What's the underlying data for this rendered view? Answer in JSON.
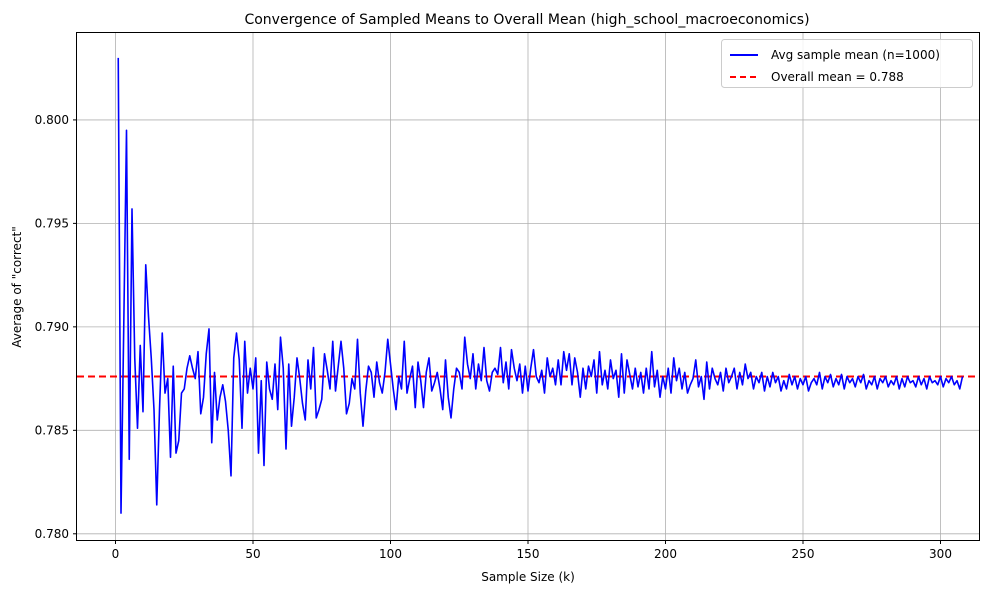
{
  "chart_data": {
    "type": "line",
    "title": "Convergence of Sampled Means to Overall Mean (high_school_macroeconomics)",
    "xlabel": "Sample Size (k)",
    "ylabel": "Average of \"correct\"",
    "xlim": [
      -14,
      314
    ],
    "ylim": [
      0.7797,
      0.8042
    ],
    "xticks": [
      0,
      50,
      100,
      150,
      200,
      250,
      300
    ],
    "yticks": [
      0.78,
      0.785,
      0.79,
      0.795,
      0.8
    ],
    "ytick_labels": [
      "0.780",
      "0.785",
      "0.790",
      "0.795",
      "0.800"
    ],
    "grid": true,
    "legend_position": "top-right",
    "legend": {
      "series_label": "Avg sample mean (n=1000)",
      "mean_label": "Overall mean = 0.788"
    },
    "overall_mean": 0.7876,
    "colors": {
      "series": "#0000ff",
      "mean_line": "#ff0000",
      "grid": "#b0b0b0"
    },
    "series": [
      {
        "name": "Avg sample mean (n=1000)",
        "x_start": 1,
        "x_step": 1,
        "values": [
          0.803,
          0.781,
          0.79,
          0.7995,
          0.7836,
          0.7957,
          0.7885,
          0.7851,
          0.7891,
          0.7859,
          0.793,
          0.7905,
          0.7885,
          0.786,
          0.7814,
          0.786,
          0.7897,
          0.7868,
          0.7875,
          0.7837,
          0.7881,
          0.7839,
          0.7845,
          0.7868,
          0.787,
          0.788,
          0.7886,
          0.788,
          0.7875,
          0.7888,
          0.7858,
          0.7866,
          0.7887,
          0.7899,
          0.7844,
          0.7878,
          0.7855,
          0.7866,
          0.7872,
          0.7864,
          0.785,
          0.7828,
          0.7885,
          0.7897,
          0.7884,
          0.7851,
          0.7893,
          0.7868,
          0.788,
          0.787,
          0.7885,
          0.7839,
          0.7874,
          0.7833,
          0.7883,
          0.787,
          0.7865,
          0.7882,
          0.786,
          0.7895,
          0.788,
          0.7841,
          0.7882,
          0.7852,
          0.7866,
          0.7885,
          0.7875,
          0.7863,
          0.7855,
          0.7884,
          0.787,
          0.789,
          0.7856,
          0.786,
          0.7865,
          0.7887,
          0.7879,
          0.787,
          0.7893,
          0.7869,
          0.7881,
          0.7893,
          0.788,
          0.7858,
          0.7863,
          0.7875,
          0.787,
          0.7894,
          0.7868,
          0.7852,
          0.7869,
          0.7881,
          0.7878,
          0.7866,
          0.7883,
          0.7873,
          0.7868,
          0.7878,
          0.7894,
          0.7882,
          0.787,
          0.786,
          0.7876,
          0.787,
          0.7893,
          0.7868,
          0.7875,
          0.7881,
          0.7861,
          0.7883,
          0.7874,
          0.7861,
          0.7878,
          0.7885,
          0.7869,
          0.7873,
          0.7878,
          0.787,
          0.786,
          0.7884,
          0.7866,
          0.7856,
          0.787,
          0.788,
          0.7878,
          0.787,
          0.7895,
          0.7882,
          0.7875,
          0.7887,
          0.787,
          0.7882,
          0.7874,
          0.789,
          0.7874,
          0.7869,
          0.7878,
          0.788,
          0.7877,
          0.789,
          0.7873,
          0.7883,
          0.787,
          0.7889,
          0.788,
          0.7874,
          0.7882,
          0.7868,
          0.7881,
          0.7869,
          0.788,
          0.7889,
          0.7876,
          0.7873,
          0.7879,
          0.7868,
          0.7885,
          0.7876,
          0.788,
          0.7872,
          0.7884,
          0.7872,
          0.7888,
          0.7879,
          0.7887,
          0.7872,
          0.7885,
          0.7878,
          0.7866,
          0.788,
          0.787,
          0.7881,
          0.7876,
          0.7884,
          0.7868,
          0.7888,
          0.7872,
          0.7879,
          0.787,
          0.7884,
          0.7875,
          0.7879,
          0.7866,
          0.7887,
          0.7868,
          0.7884,
          0.7877,
          0.787,
          0.788,
          0.7871,
          0.7878,
          0.7868,
          0.788,
          0.787,
          0.7888,
          0.7871,
          0.7879,
          0.7866,
          0.7876,
          0.787,
          0.788,
          0.7868,
          0.7885,
          0.7874,
          0.788,
          0.787,
          0.7878,
          0.7868,
          0.7872,
          0.7875,
          0.7884,
          0.7871,
          0.7876,
          0.7865,
          0.7883,
          0.787,
          0.788,
          0.7875,
          0.7872,
          0.7878,
          0.7869,
          0.788,
          0.7873,
          0.7876,
          0.788,
          0.787,
          0.7878,
          0.7872,
          0.7882,
          0.7875,
          0.7878,
          0.787,
          0.7876,
          0.7873,
          0.7878,
          0.7869,
          0.7876,
          0.7871,
          0.7878,
          0.7873,
          0.7876,
          0.7869,
          0.7874,
          0.787,
          0.7877,
          0.7872,
          0.7876,
          0.787,
          0.7875,
          0.7872,
          0.7876,
          0.7869,
          0.7873,
          0.7875,
          0.7872,
          0.7878,
          0.787,
          0.7876,
          0.7873,
          0.7877,
          0.7871,
          0.7875,
          0.7872,
          0.7877,
          0.787,
          0.7876,
          0.7873,
          0.7875,
          0.7871,
          0.7876,
          0.7873,
          0.7877,
          0.787,
          0.7874,
          0.7872,
          0.7876,
          0.787,
          0.7875,
          0.7873,
          0.7876,
          0.7871,
          0.7874,
          0.7872,
          0.7876,
          0.787,
          0.7875,
          0.7871,
          0.7876,
          0.7873,
          0.7874,
          0.7871,
          0.7876,
          0.7872,
          0.7875,
          0.787,
          0.7876,
          0.7873,
          0.7874,
          0.7872,
          0.7876,
          0.7871,
          0.7875,
          0.7873,
          0.7876,
          0.7872,
          0.7874,
          0.787,
          0.7876
        ]
      }
    ]
  }
}
